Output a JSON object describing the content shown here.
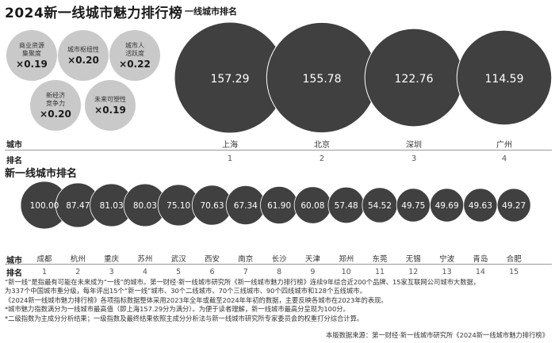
{
  "title": "2024新一线城市魅力排行榜",
  "weights": [
    {
      "label": "商业资源集聚度",
      "l1": "商业资源",
      "l2": "集聚度",
      "value": "×0.19"
    },
    {
      "label": "城市枢纽性",
      "l1": "城市枢纽性",
      "l2": "",
      "value": "×0.20"
    },
    {
      "label": "城市人活跃度",
      "l1": "城市人",
      "l2": "活跃度",
      "value": "×0.22"
    },
    {
      "label": "新经济竞争力",
      "l1": "新经济",
      "l2": "竞争力",
      "value": "×0.20"
    },
    {
      "label": "未来可塑性",
      "l1": "未来可塑性",
      "l2": "",
      "value": "×0.19"
    }
  ],
  "labels": {
    "city": "城市",
    "rank": "排名"
  },
  "chart_data": [
    {
      "type": "bubble",
      "title": "一线城市排名",
      "categories": [
        "上海",
        "北京",
        "深圳",
        "广州"
      ],
      "ranks": [
        1,
        2,
        3,
        4
      ],
      "values": [
        157.29,
        155.78,
        122.76,
        114.59
      ],
      "bubble_color": "#404040"
    },
    {
      "type": "bubble",
      "title": "新一线城市排名",
      "categories": [
        "成都",
        "杭州",
        "重庆",
        "苏州",
        "武汉",
        "西安",
        "南京",
        "长沙",
        "天津",
        "郑州",
        "东莞",
        "无锡",
        "宁波",
        "青岛",
        "合肥"
      ],
      "ranks": [
        1,
        2,
        3,
        4,
        5,
        6,
        7,
        8,
        9,
        10,
        11,
        12,
        13,
        14,
        15
      ],
      "values": [
        100.0,
        87.47,
        81.03,
        80.03,
        75.1,
        70.63,
        67.34,
        61.9,
        60.08,
        57.48,
        54.52,
        49.75,
        49.69,
        49.63,
        49.27
      ],
      "bubble_color": "#404040"
    }
  ],
  "notes": [
    "“新一线”是指最有可能在未来成为“一线”的城市。第一财经·新一线城市研究所《新一线城市魅力排行榜》连续9年综合近200个品牌、15家互联网公司城市大数据，",
    "为337个中国城市重分级，每年评出15个“新一线”城市、30个二线城市、70个三线城市、90个四线城市和128个五线城市。",
    "《2024新一线城市魅力排行榜》各项指标数据整体采用2023年全年或截至2024年年初的数据，主要反映各城市在2023年的表现。",
    "*城市魅力指数满分为一线城市最高值（即上海157.29分为满分）。为便于读者理解，新一线城市最高分呈现为100分。",
    "*二级指数为主成分分析结果；一级指数及最终结果依照主成分分析法与新一线城市研究所专家委员会的权重打分综合计算。"
  ],
  "source": "本版数据来源：第一财经·新一线城市研究所《2024新一线城市魅力排行榜》"
}
